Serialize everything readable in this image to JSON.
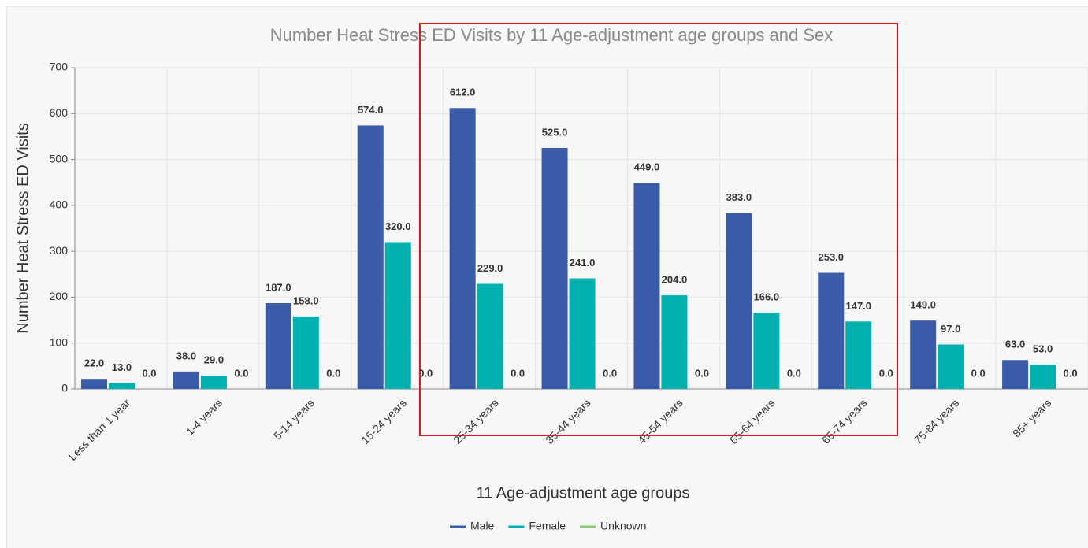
{
  "chart_data": {
    "type": "bar",
    "title": "Number Heat Stress ED Visits by 11 Age-adjustment age groups and Sex",
    "x_label": "11 Age-adjustment age groups",
    "y_label": "Number Heat Stress ED Visits",
    "categories": [
      "Less than 1 year",
      "1-4 years",
      "5-14 years",
      "15-24 years",
      "25-34 years",
      "35-44 years",
      "45-54 years",
      "55-64 years",
      "65-74 years",
      "75-84 years",
      "85+ years"
    ],
    "series": [
      {
        "name": "Male",
        "color": "#3a5ba8",
        "values": [
          22,
          38,
          187,
          574,
          612,
          525,
          449,
          383,
          253,
          149,
          63
        ],
        "value_labels": [
          "22.0",
          "38.0",
          "187.0",
          "574.0",
          "612.0",
          "525.0",
          "449.0",
          "383.0",
          "253.0",
          "149.0",
          "63.0"
        ]
      },
      {
        "name": "Female",
        "color": "#00b1b0",
        "values": [
          13,
          29,
          158,
          320,
          229,
          241,
          204,
          166,
          147,
          97,
          53
        ],
        "value_labels": [
          "13.0",
          "29.0",
          "158.0",
          "320.0",
          "229.0",
          "241.0",
          "204.0",
          "166.0",
          "147.0",
          "97.0",
          "53.0"
        ]
      },
      {
        "name": "Unknown",
        "color": "#8cc97a",
        "values": [
          0,
          0,
          0,
          0,
          0,
          0,
          0,
          0,
          0,
          0,
          0
        ],
        "value_labels": [
          "0.0",
          "0.0",
          "0.0",
          "0.0",
          "0.0",
          "0.0",
          "0.0",
          "0.0",
          "0.0",
          "0.0",
          "0.0"
        ]
      }
    ],
    "ylim": [
      0,
      700
    ],
    "yticks": [
      0,
      100,
      200,
      300,
      400,
      500,
      600,
      700
    ],
    "grid": true,
    "legend": "bottom"
  }
}
